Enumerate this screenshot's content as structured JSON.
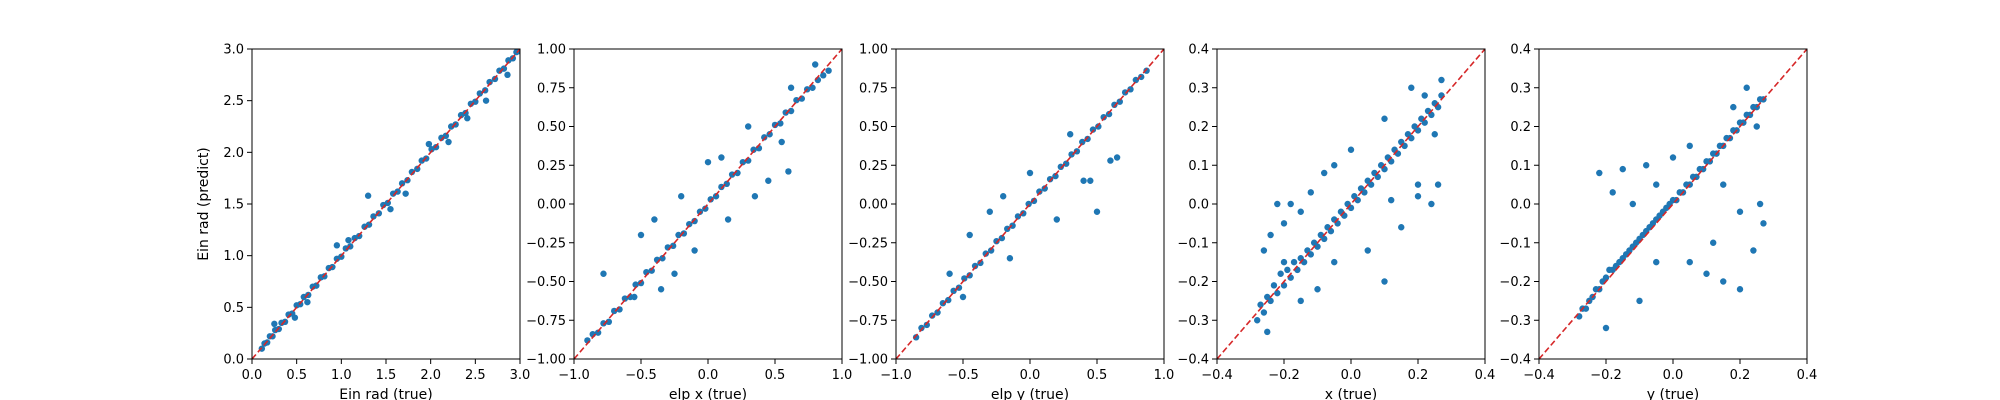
{
  "chart_data": [
    {
      "type": "scatter",
      "xlabel": "Ein rad (true)",
      "ylabel": "Ein rad (predict)",
      "xlim": [
        0,
        3
      ],
      "ylim": [
        0,
        3
      ],
      "xticks": [
        0.0,
        0.5,
        1.0,
        1.5,
        2.0,
        2.5,
        3.0
      ],
      "yticks": [
        0.0,
        0.5,
        1.0,
        1.5,
        2.0,
        2.5,
        3.0
      ],
      "xtick_labels": [
        "0.0",
        "0.5",
        "1.0",
        "1.5",
        "2.0",
        "2.5",
        "3.0"
      ],
      "ytick_labels": [
        "0.0",
        "0.5",
        "1.0",
        "1.5",
        "2.0",
        "2.5",
        "3.0"
      ],
      "reference_line": "y = x",
      "x": [
        0.11,
        0.14,
        0.17,
        0.2,
        0.23,
        0.26,
        0.3,
        0.33,
        0.37,
        0.41,
        0.45,
        0.5,
        0.54,
        0.58,
        0.63,
        0.68,
        0.72,
        0.77,
        0.81,
        0.86,
        0.9,
        0.95,
        1.0,
        1.05,
        1.1,
        1.15,
        1.2,
        1.26,
        1.31,
        1.36,
        1.42,
        1.47,
        1.52,
        1.58,
        1.63,
        1.68,
        1.74,
        1.79,
        1.85,
        1.9,
        1.95,
        2.01,
        2.06,
        2.12,
        2.17,
        2.23,
        2.28,
        2.34,
        2.39,
        2.45,
        2.5,
        2.55,
        2.61,
        2.66,
        2.72,
        2.77,
        2.82,
        2.87,
        2.92,
        2.96,
        2.99,
        0.25,
        0.48,
        0.95,
        1.3,
        1.72,
        2.2,
        2.62,
        2.86,
        0.62,
        1.08,
        1.55,
        1.98,
        2.41
      ],
      "y": [
        0.1,
        0.15,
        0.16,
        0.22,
        0.22,
        0.28,
        0.29,
        0.35,
        0.36,
        0.43,
        0.44,
        0.52,
        0.53,
        0.6,
        0.62,
        0.7,
        0.71,
        0.79,
        0.8,
        0.88,
        0.89,
        0.97,
        0.99,
        1.07,
        1.09,
        1.17,
        1.19,
        1.28,
        1.3,
        1.38,
        1.41,
        1.49,
        1.51,
        1.6,
        1.62,
        1.7,
        1.73,
        1.81,
        1.84,
        1.92,
        1.94,
        2.03,
        2.05,
        2.14,
        2.16,
        2.25,
        2.27,
        2.36,
        2.38,
        2.47,
        2.49,
        2.57,
        2.6,
        2.68,
        2.71,
        2.79,
        2.81,
        2.89,
        2.91,
        2.97,
        2.98,
        0.34,
        0.4,
        1.1,
        1.58,
        1.6,
        2.1,
        2.5,
        2.75,
        0.55,
        1.15,
        1.45,
        2.08,
        2.33
      ]
    },
    {
      "type": "scatter",
      "xlabel": "elp x (true)",
      "ylabel": "",
      "xlim": [
        -1,
        1
      ],
      "ylim": [
        -1,
        1
      ],
      "xticks": [
        -1.0,
        -0.5,
        0.0,
        0.5,
        1.0
      ],
      "yticks": [
        -1.0,
        -0.75,
        -0.5,
        -0.25,
        0.0,
        0.25,
        0.5,
        0.75,
        1.0
      ],
      "xtick_labels": [
        "−1.0",
        "−0.5",
        "0.0",
        "0.5",
        "1.0"
      ],
      "ytick_labels": [
        "−1.00",
        "−0.75",
        "−0.50",
        "−0.25",
        "0.00",
        "0.25",
        "0.50",
        "0.75",
        "1.00"
      ],
      "reference_line": "y = x",
      "x": [
        -0.9,
        -0.86,
        -0.82,
        -0.78,
        -0.74,
        -0.7,
        -0.66,
        -0.62,
        -0.58,
        -0.54,
        -0.5,
        -0.46,
        -0.42,
        -0.38,
        -0.34,
        -0.3,
        -0.26,
        -0.22,
        -0.18,
        -0.14,
        -0.1,
        -0.06,
        -0.02,
        0.02,
        0.06,
        0.1,
        0.14,
        0.18,
        0.22,
        0.26,
        0.3,
        0.34,
        0.38,
        0.42,
        0.46,
        0.5,
        0.54,
        0.58,
        0.62,
        0.66,
        0.7,
        0.74,
        0.78,
        0.82,
        0.86,
        0.9,
        -0.78,
        -0.55,
        -0.5,
        -0.35,
        -0.2,
        -0.1,
        0.0,
        0.15,
        0.3,
        0.45,
        0.6,
        0.62,
        0.8,
        -0.4,
        -0.25,
        0.1,
        0.35,
        0.55
      ],
      "y": [
        -0.88,
        -0.84,
        -0.83,
        -0.77,
        -0.76,
        -0.69,
        -0.68,
        -0.61,
        -0.6,
        -0.52,
        -0.51,
        -0.44,
        -0.43,
        -0.36,
        -0.35,
        -0.28,
        -0.27,
        -0.2,
        -0.19,
        -0.13,
        -0.11,
        -0.05,
        -0.03,
        0.03,
        0.05,
        0.11,
        0.13,
        0.19,
        0.2,
        0.27,
        0.28,
        0.35,
        0.36,
        0.43,
        0.45,
        0.51,
        0.52,
        0.59,
        0.6,
        0.67,
        0.68,
        0.74,
        0.75,
        0.8,
        0.83,
        0.86,
        -0.45,
        -0.6,
        -0.2,
        -0.55,
        0.05,
        -0.3,
        0.27,
        -0.1,
        0.5,
        0.15,
        0.21,
        0.75,
        0.9,
        -0.1,
        -0.45,
        0.3,
        0.05,
        0.4
      ]
    },
    {
      "type": "scatter",
      "xlabel": "elp y (true)",
      "ylabel": "",
      "xlim": [
        -1,
        1
      ],
      "ylim": [
        -1,
        1
      ],
      "xticks": [
        -1.0,
        -0.5,
        0.0,
        0.5,
        1.0
      ],
      "yticks": [
        -1.0,
        -0.75,
        -0.5,
        -0.25,
        0.0,
        0.25,
        0.5,
        0.75,
        1.0
      ],
      "xtick_labels": [
        "−1.0",
        "−0.5",
        "0.0",
        "0.5",
        "1.0"
      ],
      "ytick_labels": [
        "−1.00",
        "−0.75",
        "−0.50",
        "−0.25",
        "0.00",
        "0.25",
        "0.50",
        "0.75",
        "1.00"
      ],
      "reference_line": "y = x",
      "x": [
        -0.85,
        -0.81,
        -0.77,
        -0.73,
        -0.69,
        -0.65,
        -0.61,
        -0.57,
        -0.53,
        -0.49,
        -0.45,
        -0.41,
        -0.37,
        -0.33,
        -0.29,
        -0.25,
        -0.21,
        -0.17,
        -0.13,
        -0.09,
        -0.05,
        -0.01,
        0.03,
        0.07,
        0.11,
        0.15,
        0.19,
        0.23,
        0.27,
        0.31,
        0.35,
        0.39,
        0.43,
        0.47,
        0.51,
        0.55,
        0.59,
        0.63,
        0.67,
        0.71,
        0.75,
        0.79,
        0.83,
        0.87,
        -0.6,
        -0.45,
        -0.3,
        -0.15,
        0.0,
        0.2,
        0.4,
        0.6,
        0.5,
        0.65,
        -0.5,
        -0.2,
        0.3,
        0.45
      ],
      "y": [
        -0.86,
        -0.8,
        -0.78,
        -0.72,
        -0.7,
        -0.64,
        -0.62,
        -0.56,
        -0.54,
        -0.48,
        -0.46,
        -0.4,
        -0.38,
        -0.32,
        -0.3,
        -0.24,
        -0.22,
        -0.16,
        -0.14,
        -0.08,
        -0.06,
        0.0,
        0.02,
        0.08,
        0.1,
        0.16,
        0.18,
        0.24,
        0.26,
        0.32,
        0.34,
        0.4,
        0.42,
        0.48,
        0.5,
        0.56,
        0.58,
        0.64,
        0.66,
        0.72,
        0.74,
        0.8,
        0.82,
        0.86,
        -0.45,
        -0.2,
        -0.05,
        -0.35,
        0.2,
        -0.1,
        0.15,
        0.28,
        -0.05,
        0.3,
        -0.6,
        0.05,
        0.45,
        0.15
      ]
    },
    {
      "type": "scatter",
      "xlabel": "x (true)",
      "ylabel": "",
      "xlim": [
        -0.4,
        0.4
      ],
      "ylim": [
        -0.4,
        0.4
      ],
      "xticks": [
        -0.4,
        -0.2,
        0.0,
        0.2,
        0.4
      ],
      "yticks": [
        -0.4,
        -0.3,
        -0.2,
        -0.1,
        0.0,
        0.1,
        0.2,
        0.3,
        0.4
      ],
      "xtick_labels": [
        "−0.4",
        "−0.2",
        "0.0",
        "0.2",
        "0.4"
      ],
      "ytick_labels": [
        "−0.4",
        "−0.3",
        "−0.2",
        "−0.1",
        "0.0",
        "0.1",
        "0.2",
        "0.3",
        "0.4"
      ],
      "reference_line": "y = x",
      "x": [
        -0.28,
        -0.27,
        -0.26,
        -0.25,
        -0.24,
        -0.23,
        -0.22,
        -0.21,
        -0.2,
        -0.19,
        -0.18,
        -0.17,
        -0.16,
        -0.15,
        -0.14,
        -0.13,
        -0.12,
        -0.11,
        -0.1,
        -0.09,
        -0.08,
        -0.07,
        -0.06,
        -0.05,
        -0.04,
        -0.03,
        -0.02,
        -0.01,
        0.0,
        0.01,
        0.02,
        0.03,
        0.04,
        0.05,
        0.06,
        0.07,
        0.08,
        0.09,
        0.1,
        0.11,
        0.12,
        0.13,
        0.14,
        0.15,
        0.16,
        0.17,
        0.18,
        0.19,
        0.2,
        0.21,
        0.22,
        0.23,
        0.24,
        0.25,
        0.26,
        0.27,
        -0.26,
        -0.24,
        -0.22,
        -0.2,
        -0.18,
        -0.15,
        -0.12,
        -0.08,
        -0.05,
        0.0,
        0.05,
        0.1,
        0.15,
        0.2,
        0.24,
        0.26,
        0.27,
        0.22,
        0.18,
        0.1,
        -0.1,
        -0.2,
        -0.25,
        0.25,
        0.2,
        0.12,
        -0.05,
        -0.15
      ],
      "y": [
        -0.3,
        -0.26,
        -0.28,
        -0.24,
        -0.25,
        -0.21,
        -0.23,
        -0.18,
        -0.21,
        -0.17,
        -0.19,
        -0.15,
        -0.17,
        -0.14,
        -0.15,
        -0.12,
        -0.13,
        -0.1,
        -0.11,
        -0.08,
        -0.09,
        -0.06,
        -0.07,
        -0.04,
        -0.05,
        -0.02,
        -0.03,
        0.0,
        -0.01,
        0.02,
        0.01,
        0.04,
        0.03,
        0.06,
        0.05,
        0.08,
        0.07,
        0.1,
        0.09,
        0.12,
        0.11,
        0.14,
        0.13,
        0.16,
        0.15,
        0.18,
        0.17,
        0.2,
        0.19,
        0.22,
        0.21,
        0.24,
        0.23,
        0.26,
        0.25,
        0.28,
        -0.12,
        -0.08,
        0.0,
        -0.05,
        0.0,
        -0.02,
        0.03,
        0.08,
        0.1,
        0.14,
        -0.12,
        -0.2,
        -0.06,
        0.05,
        0.0,
        0.05,
        0.32,
        0.28,
        0.3,
        0.22,
        -0.22,
        -0.15,
        -0.33,
        0.18,
        0.02,
        0.01,
        -0.15,
        -0.25
      ]
    },
    {
      "type": "scatter",
      "xlabel": "y (true)",
      "ylabel": "",
      "xlim": [
        -0.4,
        0.4
      ],
      "ylim": [
        -0.4,
        0.4
      ],
      "xticks": [
        -0.4,
        -0.2,
        0.0,
        0.2,
        0.4
      ],
      "yticks": [
        -0.4,
        -0.3,
        -0.2,
        -0.1,
        0.0,
        0.1,
        0.2,
        0.3,
        0.4
      ],
      "xtick_labels": [
        "−0.4",
        "−0.2",
        "0.0",
        "0.2",
        "0.4"
      ],
      "ytick_labels": [
        "−0.4",
        "−0.3",
        "−0.2",
        "−0.1",
        "0.0",
        "0.1",
        "0.2",
        "0.3",
        "0.4"
      ],
      "reference_line": "y = x",
      "x": [
        -0.28,
        -0.27,
        -0.26,
        -0.25,
        -0.24,
        -0.23,
        -0.22,
        -0.21,
        -0.2,
        -0.19,
        -0.18,
        -0.17,
        -0.16,
        -0.15,
        -0.14,
        -0.13,
        -0.12,
        -0.11,
        -0.1,
        -0.09,
        -0.08,
        -0.07,
        -0.06,
        -0.05,
        -0.04,
        -0.03,
        -0.02,
        -0.01,
        0.0,
        0.01,
        0.02,
        0.03,
        0.04,
        0.05,
        0.06,
        0.07,
        0.08,
        0.09,
        0.1,
        0.11,
        0.12,
        0.13,
        0.14,
        0.15,
        0.16,
        0.17,
        0.18,
        0.19,
        0.2,
        0.21,
        0.22,
        0.23,
        0.24,
        0.25,
        0.26,
        0.27,
        -0.22,
        -0.18,
        -0.15,
        -0.12,
        -0.08,
        -0.05,
        0.0,
        0.05,
        0.1,
        0.15,
        0.2,
        0.24,
        0.27,
        0.26,
        0.22,
        0.18,
        0.12,
        -0.1,
        -0.2,
        0.25,
        0.05,
        -0.05,
        0.15,
        0.2
      ],
      "y": [
        -0.29,
        -0.27,
        -0.27,
        -0.25,
        -0.24,
        -0.22,
        -0.22,
        -0.2,
        -0.19,
        -0.17,
        -0.17,
        -0.16,
        -0.15,
        -0.14,
        -0.13,
        -0.12,
        -0.11,
        -0.1,
        -0.09,
        -0.08,
        -0.07,
        -0.06,
        -0.05,
        -0.04,
        -0.03,
        -0.02,
        -0.01,
        0.0,
        0.01,
        0.01,
        0.03,
        0.03,
        0.05,
        0.05,
        0.07,
        0.07,
        0.09,
        0.09,
        0.11,
        0.11,
        0.13,
        0.13,
        0.15,
        0.15,
        0.17,
        0.17,
        0.19,
        0.19,
        0.21,
        0.21,
        0.23,
        0.23,
        0.25,
        0.25,
        0.27,
        0.27,
        0.08,
        0.03,
        0.09,
        0.0,
        0.1,
        0.05,
        0.12,
        -0.15,
        -0.18,
        -0.2,
        -0.22,
        -0.12,
        -0.05,
        0.0,
        0.3,
        0.25,
        -0.1,
        -0.25,
        -0.32,
        0.2,
        0.15,
        -0.15,
        0.05,
        -0.02
      ]
    }
  ]
}
